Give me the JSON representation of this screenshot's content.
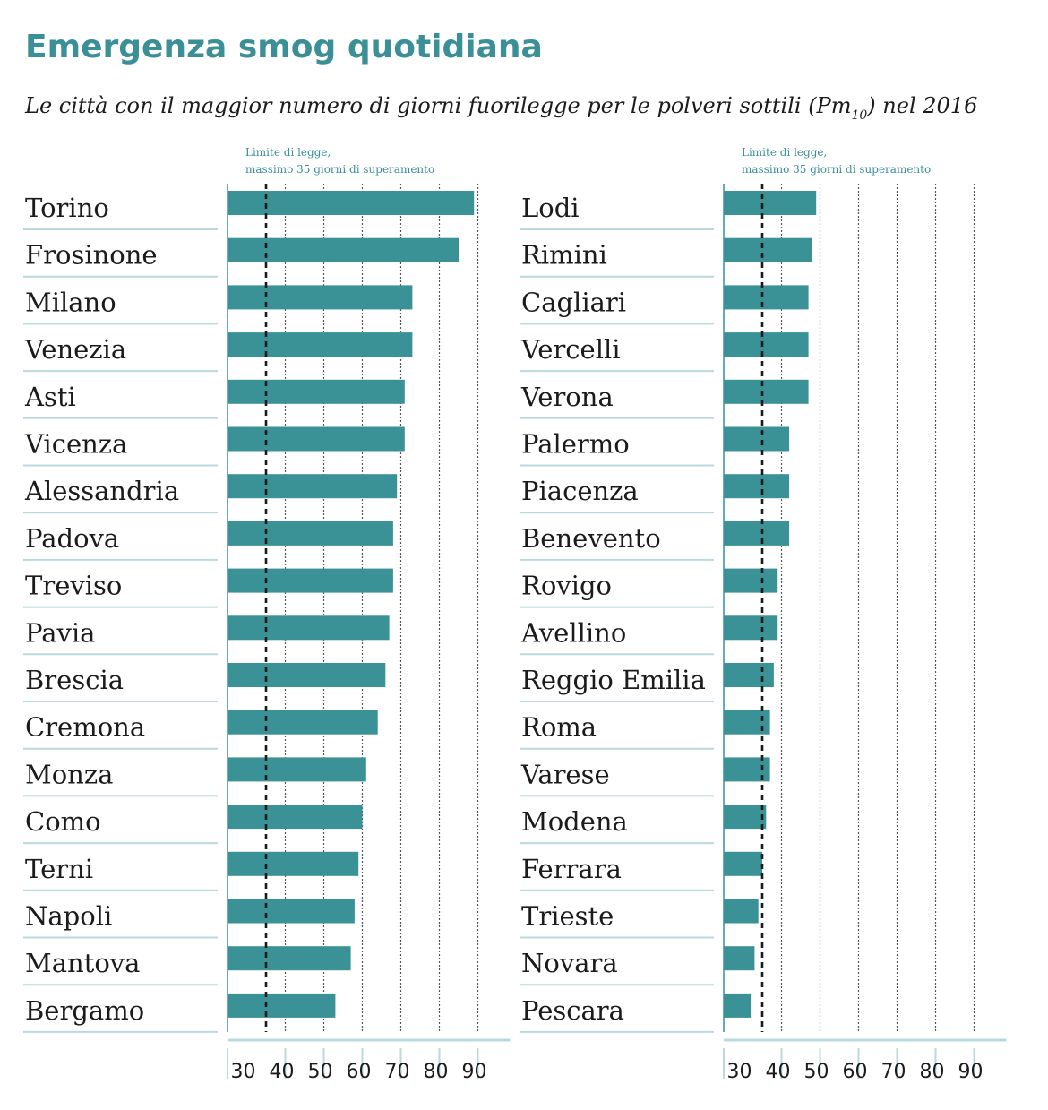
{
  "title": "Emergenza smog quotidiana",
  "subtitle": {
    "prefix": "Le città con il maggior numero di giorni fuorilegge per le polveri sottili (Pm",
    "subscript": "10",
    "suffix": ") nel 2016"
  },
  "colors": {
    "bar": "#3a9196",
    "title": "#3b8f97",
    "separator": "#b9d9dc",
    "grid": "#555555",
    "limit_line": "#1b1b1b"
  },
  "chart_data": [
    {
      "type": "bar",
      "orientation": "horizontal",
      "limit": {
        "value": 35,
        "label_line1": "Limite di legge,",
        "label_line2": "massimo 35 giorni di superamento"
      },
      "x_ticks": [
        30,
        40,
        50,
        60,
        70,
        80,
        90
      ],
      "xlim": [
        25,
        95
      ],
      "grid": true,
      "categories": [
        "Torino",
        "Frosinone",
        "Milano",
        "Venezia",
        "Asti",
        "Vicenza",
        "Alessandria",
        "Padova",
        "Treviso",
        "Pavia",
        "Brescia",
        "Cremona",
        "Monza",
        "Como",
        "Terni",
        "Napoli",
        "Mantova",
        "Bergamo"
      ],
      "values": [
        89,
        85,
        73,
        73,
        71,
        71,
        69,
        68,
        68,
        67,
        66,
        64,
        61,
        60,
        59,
        58,
        57,
        53
      ]
    },
    {
      "type": "bar",
      "orientation": "horizontal",
      "limit": {
        "value": 35,
        "label_line1": "Limite di legge,",
        "label_line2": "massimo 35 giorni di superamento"
      },
      "x_ticks": [
        30,
        40,
        50,
        60,
        70,
        80,
        90
      ],
      "xlim": [
        25,
        95
      ],
      "grid": true,
      "categories": [
        "Lodi",
        "Rimini",
        "Cagliari",
        "Vercelli",
        "Verona",
        "Palermo",
        "Piacenza",
        "Benevento",
        "Rovigo",
        "Avellino",
        "Reggio Emilia",
        "Roma",
        "Varese",
        "Modena",
        "Ferrara",
        "Trieste",
        "Novara",
        "Pescara"
      ],
      "values": [
        49,
        48,
        47,
        47,
        47,
        42,
        42,
        42,
        39,
        39,
        38,
        37,
        37,
        36,
        35,
        34,
        33,
        32
      ]
    }
  ]
}
